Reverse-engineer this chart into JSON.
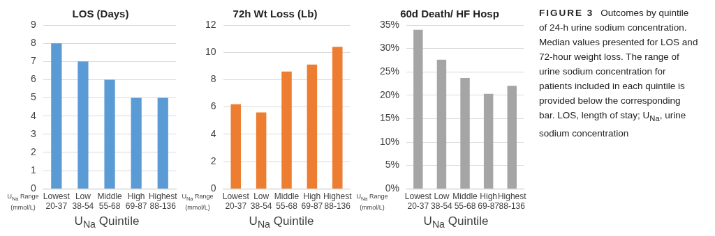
{
  "chart_data": [
    {
      "type": "bar",
      "title": "LOS (Days)",
      "categories": [
        "Lowest\n20-37",
        "Low\n38-54",
        "Middle\n55-68",
        "High\n69-87",
        "Highest\n88-136"
      ],
      "values": [
        8,
        7,
        6,
        5,
        5
      ],
      "color": "#5b9bd5",
      "ylim": [
        0,
        9
      ],
      "yticks": [
        0,
        1,
        2,
        3,
        4,
        5,
        6,
        7,
        8,
        9
      ],
      "grid": "y",
      "xlabel": "U$_{Na}$ Quintile",
      "annotations": [
        "U$_{Na}$ Range (mmol/L)"
      ]
    },
    {
      "type": "bar",
      "title": "72h Wt Loss (Lb)",
      "categories": [
        "Lowest\n20-37",
        "Low\n38-54",
        "Middle\n55-68",
        "High\n69-87",
        "Highest\n88-136"
      ],
      "values": [
        6.2,
        5.6,
        8.6,
        9.1,
        10.4
      ],
      "color": "#ed7d31",
      "ylim": [
        0,
        12
      ],
      "yticks": [
        0,
        2,
        4,
        6,
        8,
        10,
        12
      ],
      "grid": "y",
      "xlabel": "U$_{Na}$ Quintile",
      "annotations": [
        "U$_{Na}$ Range (mmol/L)"
      ]
    },
    {
      "type": "bar",
      "title": "60d Death/ HF Hosp",
      "categories": [
        "Lowest\n20-37",
        "Low\n38-54",
        "Middle\n55-68",
        "High\n69-87",
        "Highest\n88-136"
      ],
      "values": [
        34,
        27.6,
        23.7,
        20.3,
        22
      ],
      "color": "#a5a5a5",
      "ylim": [
        0,
        35
      ],
      "yticks": [
        {
          "value": 0,
          "label": "0%"
        },
        {
          "value": 5,
          "label": "5%"
        },
        {
          "value": 10,
          "label": "10%"
        },
        {
          "value": 15,
          "label": "15%"
        },
        {
          "value": 20,
          "label": "20%"
        },
        {
          "value": 25,
          "label": "25%"
        },
        {
          "value": 30,
          "label": "30%"
        },
        {
          "value": 35,
          "label": "35%"
        }
      ],
      "grid": "y",
      "xlabel": "U$_{Na}$ Quintile",
      "annotations": [
        "U$_{Na}$ Range (mmol/L)"
      ]
    },
    {
      "type": "other",
      "title": "FIGURE 3",
      "annotations": [
        "Outcomes by quintile of 24-h urine sodium concentration. Median values presented for LOS and 72-hour weight loss. The range of urine sodium concentration for patients included in each quintile is provided below the corresponding bar. LOS, length of stay; U$_{Na}$, urine sodium concentration"
      ]
    }
  ]
}
